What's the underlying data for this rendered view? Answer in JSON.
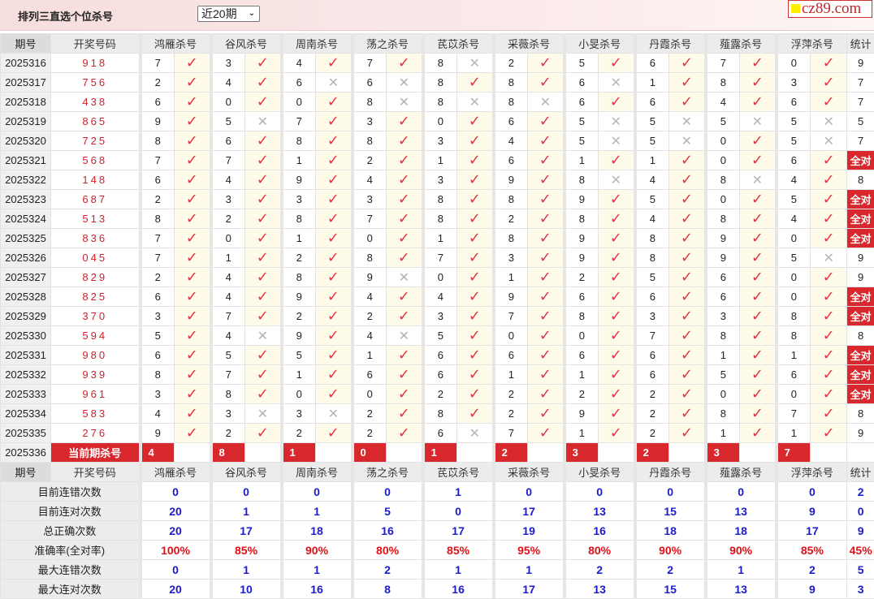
{
  "header": {
    "title": "排列三直选个位杀号",
    "period_select": "近20期",
    "logo": "cz89.com"
  },
  "columns": {
    "period": "期号",
    "draw": "开奖号码",
    "experts": [
      "鸿雁杀号",
      "谷风杀号",
      "周南杀号",
      "荡之杀号",
      "芪苡杀号",
      "采薇杀号",
      "小旻杀号",
      "丹霞杀号",
      "薤露杀号",
      "浮萍杀号"
    ],
    "stat": "统计"
  },
  "marks": {
    "ok": "✓",
    "bad": "✕",
    "ok_color": "#e03545",
    "bad_color": "#b5b5b5",
    "all_color": "#d8272d"
  },
  "rows": [
    {
      "period": "2025316",
      "draw": "918",
      "kills": [
        "7",
        "3",
        "4",
        "7",
        "8",
        "2",
        "5",
        "6",
        "7",
        "0"
      ],
      "ok": [
        1,
        1,
        1,
        1,
        0,
        1,
        1,
        1,
        1,
        1
      ],
      "stat": "9"
    },
    {
      "period": "2025317",
      "draw": "756",
      "kills": [
        "2",
        "4",
        "6",
        "6",
        "8",
        "8",
        "6",
        "1",
        "8",
        "3"
      ],
      "ok": [
        1,
        1,
        0,
        0,
        1,
        1,
        0,
        1,
        1,
        1
      ],
      "stat": "7"
    },
    {
      "period": "2025318",
      "draw": "438",
      "kills": [
        "6",
        "0",
        "0",
        "8",
        "8",
        "8",
        "6",
        "6",
        "4",
        "6"
      ],
      "ok": [
        1,
        1,
        1,
        0,
        0,
        0,
        1,
        1,
        1,
        1
      ],
      "stat": "7"
    },
    {
      "period": "2025319",
      "draw": "865",
      "kills": [
        "9",
        "5",
        "7",
        "3",
        "0",
        "6",
        "5",
        "5",
        "5",
        "5"
      ],
      "ok": [
        1,
        0,
        1,
        1,
        1,
        1,
        0,
        0,
        0,
        0
      ],
      "stat": "5"
    },
    {
      "period": "2025320",
      "draw": "725",
      "kills": [
        "8",
        "6",
        "8",
        "8",
        "3",
        "4",
        "5",
        "5",
        "0",
        "5"
      ],
      "ok": [
        1,
        1,
        1,
        1,
        1,
        1,
        0,
        0,
        1,
        0
      ],
      "stat": "7"
    },
    {
      "period": "2025321",
      "draw": "568",
      "kills": [
        "7",
        "7",
        "1",
        "2",
        "1",
        "6",
        "1",
        "1",
        "0",
        "6"
      ],
      "ok": [
        1,
        1,
        1,
        1,
        1,
        1,
        1,
        1,
        1,
        1
      ],
      "stat": "全对"
    },
    {
      "period": "2025322",
      "draw": "148",
      "kills": [
        "6",
        "4",
        "9",
        "4",
        "3",
        "9",
        "8",
        "4",
        "8",
        "4"
      ],
      "ok": [
        1,
        1,
        1,
        1,
        1,
        1,
        0,
        1,
        0,
        1
      ],
      "stat": "8"
    },
    {
      "period": "2025323",
      "draw": "687",
      "kills": [
        "2",
        "3",
        "3",
        "3",
        "8",
        "8",
        "9",
        "5",
        "0",
        "5"
      ],
      "ok": [
        1,
        1,
        1,
        1,
        1,
        1,
        1,
        1,
        1,
        1
      ],
      "stat": "全对"
    },
    {
      "period": "2025324",
      "draw": "513",
      "kills": [
        "8",
        "2",
        "8",
        "7",
        "8",
        "2",
        "8",
        "4",
        "8",
        "4"
      ],
      "ok": [
        1,
        1,
        1,
        1,
        1,
        1,
        1,
        1,
        1,
        1
      ],
      "stat": "全对"
    },
    {
      "period": "2025325",
      "draw": "836",
      "kills": [
        "7",
        "0",
        "1",
        "0",
        "1",
        "8",
        "9",
        "8",
        "9",
        "0"
      ],
      "ok": [
        1,
        1,
        1,
        1,
        1,
        1,
        1,
        1,
        1,
        1
      ],
      "stat": "全对"
    },
    {
      "period": "2025326",
      "draw": "045",
      "kills": [
        "7",
        "1",
        "2",
        "8",
        "7",
        "3",
        "9",
        "8",
        "9",
        "5"
      ],
      "ok": [
        1,
        1,
        1,
        1,
        1,
        1,
        1,
        1,
        1,
        0
      ],
      "stat": "9"
    },
    {
      "period": "2025327",
      "draw": "829",
      "kills": [
        "2",
        "4",
        "8",
        "9",
        "0",
        "1",
        "2",
        "5",
        "6",
        "0"
      ],
      "ok": [
        1,
        1,
        1,
        0,
        1,
        1,
        1,
        1,
        1,
        1
      ],
      "stat": "9"
    },
    {
      "period": "2025328",
      "draw": "825",
      "kills": [
        "6",
        "4",
        "9",
        "4",
        "4",
        "9",
        "6",
        "6",
        "6",
        "0"
      ],
      "ok": [
        1,
        1,
        1,
        1,
        1,
        1,
        1,
        1,
        1,
        1
      ],
      "stat": "全对"
    },
    {
      "period": "2025329",
      "draw": "370",
      "kills": [
        "3",
        "7",
        "2",
        "2",
        "3",
        "7",
        "8",
        "3",
        "3",
        "8"
      ],
      "ok": [
        1,
        1,
        1,
        1,
        1,
        1,
        1,
        1,
        1,
        1
      ],
      "stat": "全对"
    },
    {
      "period": "2025330",
      "draw": "594",
      "kills": [
        "5",
        "4",
        "9",
        "4",
        "5",
        "0",
        "0",
        "7",
        "8",
        "8"
      ],
      "ok": [
        1,
        0,
        1,
        0,
        1,
        1,
        1,
        1,
        1,
        1
      ],
      "stat": "8"
    },
    {
      "period": "2025331",
      "draw": "980",
      "kills": [
        "6",
        "5",
        "5",
        "1",
        "6",
        "6",
        "6",
        "6",
        "1",
        "1"
      ],
      "ok": [
        1,
        1,
        1,
        1,
        1,
        1,
        1,
        1,
        1,
        1
      ],
      "stat": "全对"
    },
    {
      "period": "2025332",
      "draw": "939",
      "kills": [
        "8",
        "7",
        "1",
        "6",
        "6",
        "1",
        "1",
        "6",
        "5",
        "6"
      ],
      "ok": [
        1,
        1,
        1,
        1,
        1,
        1,
        1,
        1,
        1,
        1
      ],
      "stat": "全对"
    },
    {
      "period": "2025333",
      "draw": "961",
      "kills": [
        "3",
        "8",
        "0",
        "0",
        "2",
        "2",
        "2",
        "2",
        "0",
        "0"
      ],
      "ok": [
        1,
        1,
        1,
        1,
        1,
        1,
        1,
        1,
        1,
        1
      ],
      "stat": "全对"
    },
    {
      "period": "2025334",
      "draw": "583",
      "kills": [
        "4",
        "3",
        "3",
        "2",
        "8",
        "2",
        "9",
        "2",
        "8",
        "7"
      ],
      "ok": [
        1,
        0,
        0,
        1,
        1,
        1,
        1,
        1,
        1,
        1
      ],
      "stat": "8"
    },
    {
      "period": "2025335",
      "draw": "276",
      "kills": [
        "9",
        "2",
        "2",
        "2",
        "6",
        "7",
        "1",
        "2",
        "1",
        "1"
      ],
      "ok": [
        1,
        1,
        1,
        1,
        0,
        1,
        1,
        1,
        1,
        1
      ],
      "stat": "9"
    }
  ],
  "current": {
    "period": "2025336",
    "label": "当前期杀号",
    "kills": [
      "4",
      "8",
      "1",
      "0",
      "1",
      "2",
      "3",
      "2",
      "3",
      "7"
    ]
  },
  "stats": [
    {
      "label": "目前连错次数",
      "values": [
        "0",
        "0",
        "0",
        "0",
        "1",
        "0",
        "0",
        "0",
        "0",
        "0"
      ],
      "stat": "2",
      "style": "count"
    },
    {
      "label": "目前连对次数",
      "values": [
        "20",
        "1",
        "1",
        "5",
        "0",
        "17",
        "13",
        "15",
        "13",
        "9"
      ],
      "stat": "0",
      "style": "count"
    },
    {
      "label": "总正确次数",
      "values": [
        "20",
        "17",
        "18",
        "16",
        "17",
        "19",
        "16",
        "18",
        "18",
        "17"
      ],
      "stat": "9",
      "style": "count"
    },
    {
      "label": "准确率(全对率)",
      "values": [
        "100%",
        "85%",
        "90%",
        "80%",
        "85%",
        "95%",
        "80%",
        "90%",
        "90%",
        "85%"
      ],
      "stat": "45%",
      "style": "rate"
    },
    {
      "label": "最大连错次数",
      "values": [
        "0",
        "1",
        "1",
        "2",
        "1",
        "1",
        "2",
        "2",
        "1",
        "2"
      ],
      "stat": "5",
      "style": "count"
    },
    {
      "label": "最大连对次数",
      "values": [
        "20",
        "10",
        "16",
        "8",
        "16",
        "17",
        "13",
        "15",
        "13",
        "9"
      ],
      "stat": "3",
      "style": "count"
    }
  ]
}
